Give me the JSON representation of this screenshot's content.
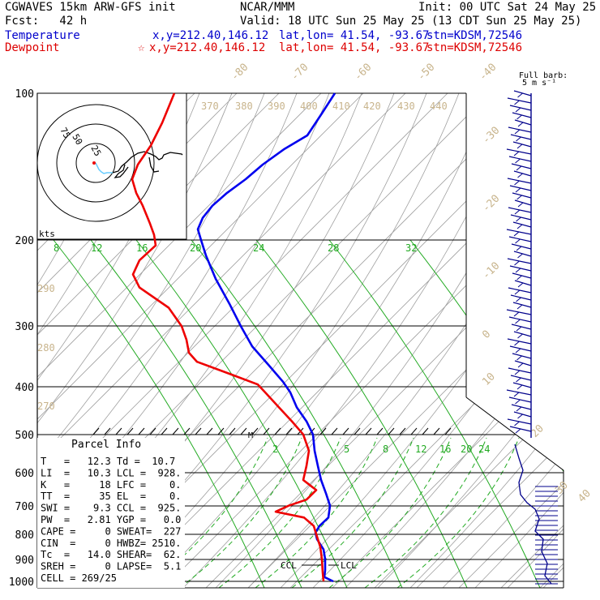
{
  "header": {
    "model": "CGWAVES 15km ARW-GFS init",
    "fcst": "Fcst:   42 h",
    "org": "NCAR/MMM",
    "init": "Init: 00 UTC Sat 24 May 25",
    "valid": "Valid: 18 UTC Sun 25 May 25 (13 CDT Sun 25 May 25)",
    "temperature": {
      "label": "Temperature",
      "xy": "x,y=212.40,146.12",
      "latlon": "lat,lon= 41.54, -93.67",
      "stn": "stn=KDSM,72546"
    },
    "dewpoint": {
      "label": "Dewpoint",
      "xy": "x,y=212.40,146.12",
      "latlon": "lat,lon= 41.54, -93.67",
      "stn": "stn=KDSM,72546"
    },
    "barb_label_1": "Full barb:",
    "barb_label_2": "5 m s⁻¹"
  },
  "colors": {
    "temperature": "#0000ee",
    "dewpoint": "#ee0000",
    "mixing_ratio": "#22aa22",
    "isotherm_text": "#c8b48c",
    "grid": "#a0a0a0",
    "hodograph_line": "#000000",
    "hodograph_low": "#66ccff",
    "barbs": "#00008b"
  },
  "chart_data": {
    "type": "line",
    "ylabel": "",
    "xlabel": "",
    "pressure_levels": [
      "100",
      "200",
      "300",
      "400",
      "500",
      "600",
      "700",
      "800",
      "900",
      "1000"
    ],
    "skewed_isotherm_labels": [
      "-80",
      "-70",
      "-60",
      "-50",
      "-40",
      "-30",
      "-20",
      "-10",
      "0",
      "10",
      "20",
      "30",
      "40"
    ],
    "dry_adiabat_labels": [
      "370",
      "380",
      "390",
      "400",
      "410",
      "420",
      "430",
      "440",
      "290",
      "280",
      "270"
    ],
    "mixing_ratio_upper_labels": [
      "8",
      "12",
      "16",
      "20",
      "24",
      "28",
      "32"
    ],
    "mixing_ratio_lower_labels": [
      "2",
      "5",
      "8",
      "12",
      "16",
      "20",
      "24"
    ],
    "hodograph": {
      "units": "kts",
      "ring_labels": [
        "75",
        "50",
        "25"
      ]
    },
    "series": [
      {
        "name": "Temperature",
        "color": "#0000ee",
        "points": [
          {
            "p": 1000,
            "x": 411
          },
          {
            "p": 980,
            "x": 400
          },
          {
            "p": 950,
            "x": 401
          },
          {
            "p": 900,
            "x": 401
          },
          {
            "p": 860,
            "x": 399
          },
          {
            "p": 820,
            "x": 391
          },
          {
            "p": 795,
            "x": 389
          },
          {
            "p": 770,
            "x": 394
          },
          {
            "p": 740,
            "x": 405
          },
          {
            "p": 700,
            "x": 407
          },
          {
            "p": 660,
            "x": 402
          },
          {
            "p": 620,
            "x": 396
          },
          {
            "p": 580,
            "x": 392
          },
          {
            "p": 540,
            "x": 388
          },
          {
            "p": 500,
            "x": 386
          },
          {
            "p": 470,
            "x": 378
          },
          {
            "p": 440,
            "x": 366
          },
          {
            "p": 410,
            "x": 358
          },
          {
            "p": 390,
            "x": 349
          },
          {
            "p": 360,
            "x": 331
          },
          {
            "p": 330,
            "x": 311
          },
          {
            "p": 300,
            "x": 297
          },
          {
            "p": 270,
            "x": 283
          },
          {
            "p": 240,
            "x": 266
          },
          {
            "p": 215,
            "x": 254
          },
          {
            "p": 200,
            "x": 248
          },
          {
            "p": 190,
            "x": 244
          },
          {
            "p": 180,
            "x": 250
          },
          {
            "p": 170,
            "x": 262
          },
          {
            "p": 160,
            "x": 280
          },
          {
            "p": 150,
            "x": 303
          },
          {
            "p": 140,
            "x": 324
          },
          {
            "p": 130,
            "x": 351
          },
          {
            "p": 122,
            "x": 379
          },
          {
            "p": 110,
            "x": 397
          },
          {
            "p": 100,
            "x": 413
          }
        ]
      },
      {
        "name": "Dewpoint",
        "color": "#ee0000",
        "points": [
          {
            "p": 1000,
            "x": 399
          },
          {
            "p": 960,
            "x": 398
          },
          {
            "p": 900,
            "x": 397
          },
          {
            "p": 850,
            "x": 395
          },
          {
            "p": 800,
            "x": 390
          },
          {
            "p": 770,
            "x": 387
          },
          {
            "p": 740,
            "x": 375
          },
          {
            "p": 720,
            "x": 340
          },
          {
            "p": 700,
            "x": 356
          },
          {
            "p": 680,
            "x": 378
          },
          {
            "p": 650,
            "x": 390
          },
          {
            "p": 620,
            "x": 374
          },
          {
            "p": 580,
            "x": 378
          },
          {
            "p": 540,
            "x": 381
          },
          {
            "p": 500,
            "x": 374
          },
          {
            "p": 470,
            "x": 360
          },
          {
            "p": 440,
            "x": 344
          },
          {
            "p": 410,
            "x": 327
          },
          {
            "p": 395,
            "x": 318
          },
          {
            "p": 375,
            "x": 282
          },
          {
            "p": 355,
            "x": 243
          },
          {
            "p": 340,
            "x": 233
          },
          {
            "p": 320,
            "x": 230
          },
          {
            "p": 300,
            "x": 224
          },
          {
            "p": 275,
            "x": 208
          },
          {
            "p": 250,
            "x": 172
          },
          {
            "p": 235,
            "x": 164
          },
          {
            "p": 220,
            "x": 172
          },
          {
            "p": 205,
            "x": 192
          },
          {
            "p": 195,
            "x": 190
          },
          {
            "p": 185,
            "x": 185
          },
          {
            "p": 170,
            "x": 176
          },
          {
            "p": 160,
            "x": 168
          },
          {
            "p": 150,
            "x": 163
          },
          {
            "p": 140,
            "x": 170
          },
          {
            "p": 128,
            "x": 186
          },
          {
            "p": 115,
            "x": 200
          },
          {
            "p": 100,
            "x": 215
          }
        ]
      }
    ],
    "annotations": [
      "CCL",
      "LCL",
      "M"
    ]
  },
  "parcel_info": {
    "title": "Parcel Info",
    "rows": [
      "T   =   12.3 Td =  10.7",
      "LI  =   10.3 LCL =  928.",
      "K   =     18 LFC =    0.",
      "TT  =     35 EL  =    0.",
      "SWI =    9.3 CCL =  925.",
      "PW  =   2.81 YGP =   0.0",
      "CAPE =     0 SWEAT=  227",
      "CIN  =     0 HWBZ= 2510.",
      "Tc  =   14.0 SHEAR=  62.",
      "SREH =     0 LAPSE=  5.1",
      "CELL = 269/25"
    ]
  }
}
